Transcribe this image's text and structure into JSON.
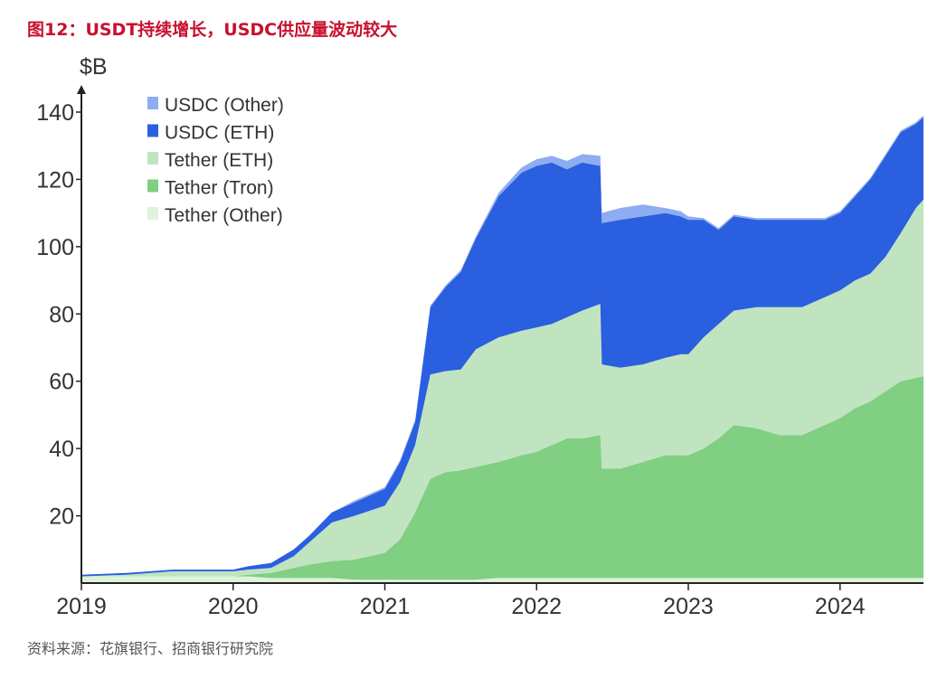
{
  "figure": {
    "title": "图12：USDT持续增长，USDC供应量波动较大",
    "source": "资料来源：花旗银行、招商银行研究院"
  },
  "chart_data": {
    "type": "area",
    "stacked": true,
    "unit_label": "$B",
    "ylim": [
      0,
      145
    ],
    "xlim": [
      2019.0,
      2024.55
    ],
    "y_ticks": [
      20,
      40,
      60,
      80,
      100,
      120,
      140
    ],
    "x_ticks": [
      2019,
      2020,
      2021,
      2022,
      2023,
      2024
    ],
    "grid": false,
    "legend_position": "top-left",
    "x": [
      2019.0,
      2019.3,
      2019.6,
      2019.9,
      2020.0,
      2020.1,
      2020.25,
      2020.4,
      2020.5,
      2020.65,
      2020.8,
      2020.9,
      2021.0,
      2021.1,
      2021.2,
      2021.3,
      2021.4,
      2021.5,
      2021.6,
      2021.75,
      2021.9,
      2022.0,
      2022.1,
      2022.2,
      2022.3,
      2022.42,
      2022.43,
      2022.55,
      2022.7,
      2022.85,
      2022.95,
      2023.0,
      2023.1,
      2023.2,
      2023.3,
      2023.45,
      2023.6,
      2023.75,
      2023.85,
      2023.9,
      2024.0,
      2024.1,
      2024.2,
      2024.3,
      2024.4,
      2024.5,
      2024.55
    ],
    "series": [
      {
        "name": "Tether (Other)",
        "color": "#dff2dc",
        "values": [
          2.0,
          2.0,
          2.0,
          2.0,
          2.0,
          2.0,
          1.5,
          1.5,
          1.5,
          1.5,
          1.0,
          1.0,
          1.0,
          1.0,
          1.0,
          1.0,
          1.0,
          1.0,
          1.0,
          1.5,
          1.5,
          1.5,
          1.5,
          1.5,
          1.5,
          1.5,
          1.5,
          1.5,
          1.5,
          1.5,
          1.5,
          1.5,
          1.5,
          1.5,
          1.5,
          1.5,
          1.5,
          1.5,
          1.5,
          1.5,
          1.5,
          1.5,
          1.5,
          1.5,
          1.5,
          1.5,
          1.5
        ]
      },
      {
        "name": "Tether (Tron)",
        "color": "#80cf82",
        "values": [
          0.0,
          0.0,
          0.0,
          0.0,
          0.0,
          0.5,
          1.5,
          3.0,
          4.0,
          5.0,
          6.0,
          7.0,
          8.0,
          12.0,
          20.0,
          30.0,
          32.0,
          32.5,
          33.5,
          34.5,
          36.5,
          37.5,
          39.5,
          41.5,
          41.5,
          42.5,
          32.5,
          32.5,
          34.5,
          36.5,
          36.5,
          36.5,
          38.5,
          41.5,
          45.5,
          44.5,
          42.5,
          42.5,
          44.5,
          45.5,
          47.5,
          50.5,
          52.5,
          55.5,
          58.5,
          59.5,
          60.0
        ]
      },
      {
        "name": "Tether (ETH)",
        "color": "#bfe4bf",
        "values": [
          0.0,
          0.5,
          1.5,
          1.5,
          1.5,
          1.5,
          1.5,
          3.5,
          6.5,
          11.5,
          13.0,
          13.5,
          14.0,
          17.0,
          20.0,
          31.0,
          30.0,
          30.0,
          35.0,
          37.0,
          37.0,
          37.0,
          36.0,
          36.0,
          38.0,
          39.0,
          31.0,
          30.0,
          29.0,
          29.0,
          30.0,
          30.0,
          33.0,
          34.0,
          34.0,
          36.0,
          38.0,
          38.0,
          38.0,
          38.0,
          38.0,
          38.0,
          38.0,
          40.0,
          44.0,
          50.5,
          52.5
        ]
      },
      {
        "name": "USDC (ETH)",
        "color": "#2a5fe0",
        "values": [
          0.5,
          0.5,
          0.5,
          0.5,
          0.5,
          1.0,
          1.5,
          2.0,
          2.0,
          3.0,
          4.0,
          4.5,
          5.0,
          6.0,
          7.0,
          20.0,
          25.0,
          29.0,
          33.0,
          42.0,
          47.0,
          48.0,
          48.0,
          44.0,
          44.0,
          41.0,
          42.0,
          44.0,
          44.0,
          43.0,
          41.0,
          40.0,
          35.0,
          28.0,
          28.0,
          26.0,
          26.0,
          26.0,
          24.0,
          23.0,
          23.0,
          25.0,
          28.0,
          30.0,
          30.0,
          25.0,
          24.5
        ]
      },
      {
        "name": "USDC (Other)",
        "color": "#8eacf1",
        "values": [
          0.0,
          0.0,
          0.0,
          0.0,
          0.0,
          0.0,
          0.0,
          0.0,
          0.0,
          0.0,
          0.5,
          0.5,
          0.5,
          0.5,
          0.5,
          0.5,
          0.5,
          0.5,
          0.5,
          1.0,
          1.5,
          2.0,
          2.0,
          2.5,
          2.5,
          3.0,
          3.0,
          3.5,
          3.5,
          1.5,
          1.5,
          1.0,
          0.5,
          0.5,
          0.5,
          0.5,
          0.5,
          0.5,
          0.5,
          0.5,
          0.5,
          0.5,
          0.5,
          0.5,
          0.5,
          0.5,
          0.5
        ]
      }
    ]
  }
}
